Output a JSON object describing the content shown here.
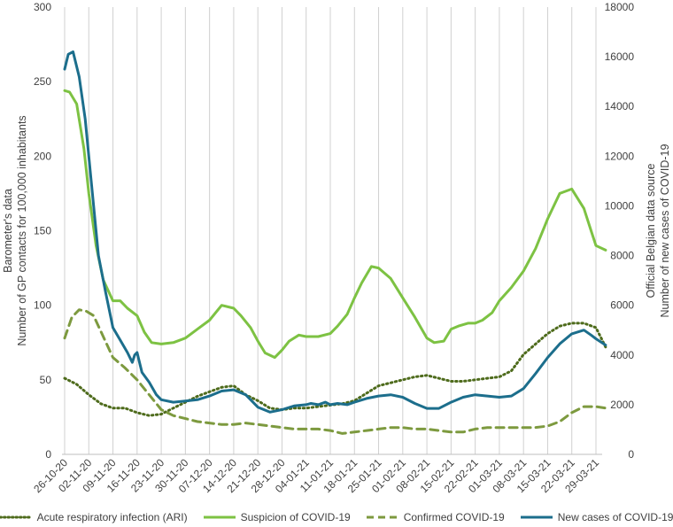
{
  "chart_data": {
    "type": "line",
    "categories": [
      "26-10-20",
      "02-11-20",
      "09-11-20",
      "16-11-20",
      "23-11-20",
      "30-11-20",
      "07-12-20",
      "14-12-20",
      "21-12-20",
      "28-12-20",
      "04-01-21",
      "11-01-21",
      "18-01-21",
      "25-01-21",
      "01-02-21",
      "08-02-21",
      "15-02-21",
      "22-02-21",
      "01-03-21",
      "08-03-21",
      "15-03-21",
      "22-03-21",
      "29-03-21"
    ],
    "y_left": {
      "label_line1": "Barometer's data",
      "label_line2": "Number of GP contacts for 100,000 inhabitants",
      "lim": [
        0,
        300
      ],
      "ticks": [
        "0",
        "50",
        "100",
        "150",
        "200",
        "250",
        "300"
      ]
    },
    "y_right": {
      "label_line1": "Official Belgian data source",
      "label_line2": "Number of new cases of COVID-19",
      "lim": [
        0,
        18000
      ],
      "ticks": [
        "0",
        "2000",
        "4000",
        "6000",
        "8000",
        "10000",
        "12000",
        "14000",
        "16000",
        "18000"
      ]
    },
    "series": [
      {
        "name": "Acute respiratory infection (ARI)",
        "axis": "left",
        "color": "#4e6b1c",
        "dash": "dotted",
        "x": [
          0,
          0.5,
          1,
          1.5,
          2,
          2.5,
          3,
          3.5,
          4,
          4.5,
          5,
          5.5,
          6,
          6.5,
          7,
          7.5,
          8,
          8.5,
          9,
          9.5,
          10,
          10.5,
          11,
          11.5,
          12,
          12.5,
          13,
          13.5,
          14,
          14.5,
          15,
          15.5,
          16,
          16.5,
          17,
          17.5,
          18,
          18.5,
          19,
          19.5,
          20,
          20.5,
          21,
          21.5,
          22,
          22.4
        ],
        "values": [
          51,
          47,
          40,
          34,
          31,
          31,
          28,
          26,
          27,
          31,
          35,
          39,
          42,
          45,
          46,
          40,
          36,
          31,
          30,
          31,
          31,
          32,
          33,
          34,
          36,
          41,
          46,
          48,
          50,
          52,
          53,
          51,
          49,
          49,
          50,
          51,
          52,
          56,
          67,
          74,
          81,
          86,
          88,
          88,
          85,
          72
        ]
      },
      {
        "name": "Suspicion of COVID-19",
        "axis": "left",
        "color": "#7dc243",
        "dash": "solid",
        "x": [
          0,
          0.2,
          0.5,
          0.8,
          1,
          1.3,
          1.6,
          2,
          2.3,
          2.6,
          3,
          3.3,
          3.6,
          4,
          4.5,
          5,
          5.5,
          6,
          6.5,
          7,
          7.3,
          7.7,
          8,
          8.3,
          8.7,
          9,
          9.3,
          9.7,
          10,
          10.5,
          11,
          11.3,
          11.7,
          12,
          12.3,
          12.7,
          13,
          13.5,
          14,
          14.5,
          15,
          15.3,
          15.7,
          16,
          16.3,
          16.7,
          17,
          17.3,
          17.7,
          18,
          18.5,
          19,
          19.5,
          20,
          20.5,
          21,
          21.5,
          21.8,
          22,
          22.4
        ],
        "values": [
          244,
          243,
          235,
          205,
          175,
          140,
          117,
          103,
          103,
          98,
          93,
          82,
          75,
          74,
          75,
          78,
          84,
          90,
          100,
          98,
          93,
          85,
          76,
          68,
          65,
          70,
          76,
          80,
          79,
          79,
          81,
          86,
          94,
          105,
          115,
          126,
          125,
          118,
          105,
          92,
          78,
          75,
          76,
          84,
          86,
          88,
          88,
          90,
          95,
          103,
          112,
          123,
          138,
          158,
          175,
          178,
          165,
          150,
          140,
          137
        ]
      },
      {
        "name": "Confirmed COVID-19",
        "axis": "left",
        "color": "#7d9a3f",
        "dash": "dashed",
        "x": [
          0,
          0.3,
          0.6,
          0.9,
          1.2,
          1.6,
          2,
          2.5,
          3,
          3.5,
          4,
          4.5,
          5,
          5.5,
          6,
          6.5,
          7,
          7.5,
          8,
          8.5,
          9,
          9.5,
          10,
          10.5,
          11,
          11.5,
          12,
          12.5,
          13,
          13.5,
          14,
          14.5,
          15,
          15.5,
          16,
          16.5,
          17,
          17.5,
          18,
          18.5,
          19,
          19.5,
          20,
          20.5,
          21,
          21.5,
          22,
          22.4
        ],
        "values": [
          78,
          92,
          97,
          96,
          93,
          79,
          65,
          58,
          50,
          40,
          30,
          26,
          24,
          22,
          21,
          20,
          20,
          21,
          20,
          19,
          18,
          17,
          17,
          17,
          16,
          14,
          15,
          16,
          17,
          18,
          18,
          17,
          17,
          16,
          15,
          15,
          17,
          18,
          18,
          18,
          18,
          18,
          19,
          22,
          28,
          32,
          32,
          31
        ]
      },
      {
        "name": "New cases of COVID-19",
        "axis": "right",
        "color": "#1c6e8c",
        "dash": "solid",
        "x": [
          0,
          0.15,
          0.35,
          0.6,
          0.85,
          1.1,
          1.4,
          1.7,
          2,
          2.3,
          2.6,
          2.8,
          2.9,
          3,
          3.2,
          3.5,
          3.8,
          4,
          4.5,
          5,
          5.5,
          6,
          6.5,
          7,
          7.5,
          8,
          8.5,
          9,
          9.5,
          10,
          10.2,
          10.5,
          10.8,
          11,
          11.3,
          11.7,
          12,
          12.5,
          13,
          13.5,
          14,
          14.5,
          15,
          15.5,
          16,
          16.5,
          17,
          17.5,
          18,
          18.5,
          19,
          19.5,
          20,
          20.5,
          21,
          21.5,
          21.8,
          22,
          22.4
        ],
        "values": [
          15500,
          16100,
          16200,
          15200,
          13500,
          11000,
          8000,
          6500,
          5100,
          4600,
          4100,
          3700,
          4000,
          4100,
          3300,
          2900,
          2400,
          2200,
          2100,
          2150,
          2200,
          2350,
          2550,
          2600,
          2400,
          1900,
          1700,
          1800,
          1950,
          2000,
          2050,
          2000,
          2100,
          2000,
          2050,
          2000,
          2100,
          2250,
          2350,
          2400,
          2300,
          2050,
          1850,
          1850,
          2100,
          2300,
          2400,
          2350,
          2300,
          2350,
          2650,
          3250,
          3900,
          4450,
          4850,
          5000,
          4800,
          4650,
          4400
        ]
      }
    ]
  },
  "legend": [
    {
      "label": "Acute respiratory infection (ARI)",
      "color": "#4e6b1c"
    },
    {
      "label": "Suspicion of COVID-19",
      "color": "#7dc243"
    },
    {
      "label": "Confirmed COVID-19",
      "color": "#7d9a3f"
    },
    {
      "label": "New cases of COVID-19",
      "color": "#1c6e8c"
    }
  ]
}
